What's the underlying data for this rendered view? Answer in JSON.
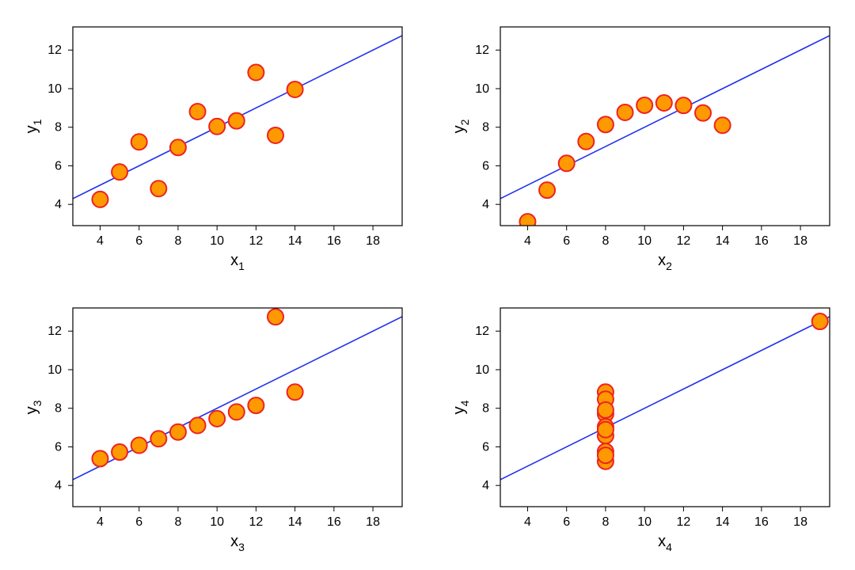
{
  "global": {
    "background_color": "#ffffff",
    "frame_stroke": "#000000",
    "frame_stroke_width": 1.2,
    "tick_length": 6,
    "tick_label_fontsize": 16,
    "axis_label_fontsize": 20,
    "sub_fontsize": 14,
    "regression": {
      "intercept": 3.0,
      "slope": 0.5,
      "stroke": "#2233ee",
      "stroke_width": 1.6
    },
    "marker": {
      "radius": 10,
      "fill": "#ff9900",
      "stroke": "#ee2222",
      "stroke_width": 2
    },
    "xlim": [
      2.6,
      19.5
    ],
    "ylim": [
      2.9,
      13.2
    ],
    "xticks": [
      4,
      6,
      8,
      10,
      12,
      14,
      16,
      18
    ],
    "yticks": [
      4,
      6,
      8,
      10,
      12
    ]
  },
  "panels": [
    {
      "id": "p1",
      "xlabel_main": "x",
      "xlabel_sub": "1",
      "ylabel_main": "y",
      "ylabel_sub": "1",
      "points": [
        {
          "x": 10,
          "y": 8.04
        },
        {
          "x": 8,
          "y": 6.95
        },
        {
          "x": 13,
          "y": 7.58
        },
        {
          "x": 9,
          "y": 8.81
        },
        {
          "x": 11,
          "y": 8.33
        },
        {
          "x": 14,
          "y": 9.96
        },
        {
          "x": 6,
          "y": 7.24
        },
        {
          "x": 4,
          "y": 4.26
        },
        {
          "x": 12,
          "y": 10.84
        },
        {
          "x": 7,
          "y": 4.82
        },
        {
          "x": 5,
          "y": 5.68
        }
      ]
    },
    {
      "id": "p2",
      "xlabel_main": "x",
      "xlabel_sub": "2",
      "ylabel_main": "y",
      "ylabel_sub": "2",
      "points": [
        {
          "x": 10,
          "y": 9.14
        },
        {
          "x": 8,
          "y": 8.14
        },
        {
          "x": 13,
          "y": 8.74
        },
        {
          "x": 9,
          "y": 8.77
        },
        {
          "x": 11,
          "y": 9.26
        },
        {
          "x": 14,
          "y": 8.1
        },
        {
          "x": 6,
          "y": 6.13
        },
        {
          "x": 4,
          "y": 3.1
        },
        {
          "x": 12,
          "y": 9.13
        },
        {
          "x": 7,
          "y": 7.26
        },
        {
          "x": 5,
          "y": 4.74
        }
      ]
    },
    {
      "id": "p3",
      "xlabel_main": "x",
      "xlabel_sub": "3",
      "ylabel_main": "y",
      "ylabel_sub": "3",
      "points": [
        {
          "x": 10,
          "y": 7.46
        },
        {
          "x": 8,
          "y": 6.77
        },
        {
          "x": 13,
          "y": 12.74
        },
        {
          "x": 9,
          "y": 7.11
        },
        {
          "x": 11,
          "y": 7.81
        },
        {
          "x": 14,
          "y": 8.84
        },
        {
          "x": 6,
          "y": 6.08
        },
        {
          "x": 4,
          "y": 5.39
        },
        {
          "x": 12,
          "y": 8.15
        },
        {
          "x": 7,
          "y": 6.42
        },
        {
          "x": 5,
          "y": 5.73
        }
      ]
    },
    {
      "id": "p4",
      "xlabel_main": "x",
      "xlabel_sub": "4",
      "ylabel_main": "y",
      "ylabel_sub": "4",
      "points": [
        {
          "x": 8,
          "y": 6.58
        },
        {
          "x": 8,
          "y": 5.76
        },
        {
          "x": 8,
          "y": 7.71
        },
        {
          "x": 8,
          "y": 8.84
        },
        {
          "x": 8,
          "y": 8.47
        },
        {
          "x": 8,
          "y": 7.04
        },
        {
          "x": 8,
          "y": 5.25
        },
        {
          "x": 19,
          "y": 12.5
        },
        {
          "x": 8,
          "y": 5.56
        },
        {
          "x": 8,
          "y": 7.91
        },
        {
          "x": 8,
          "y": 6.89
        }
      ]
    }
  ]
}
